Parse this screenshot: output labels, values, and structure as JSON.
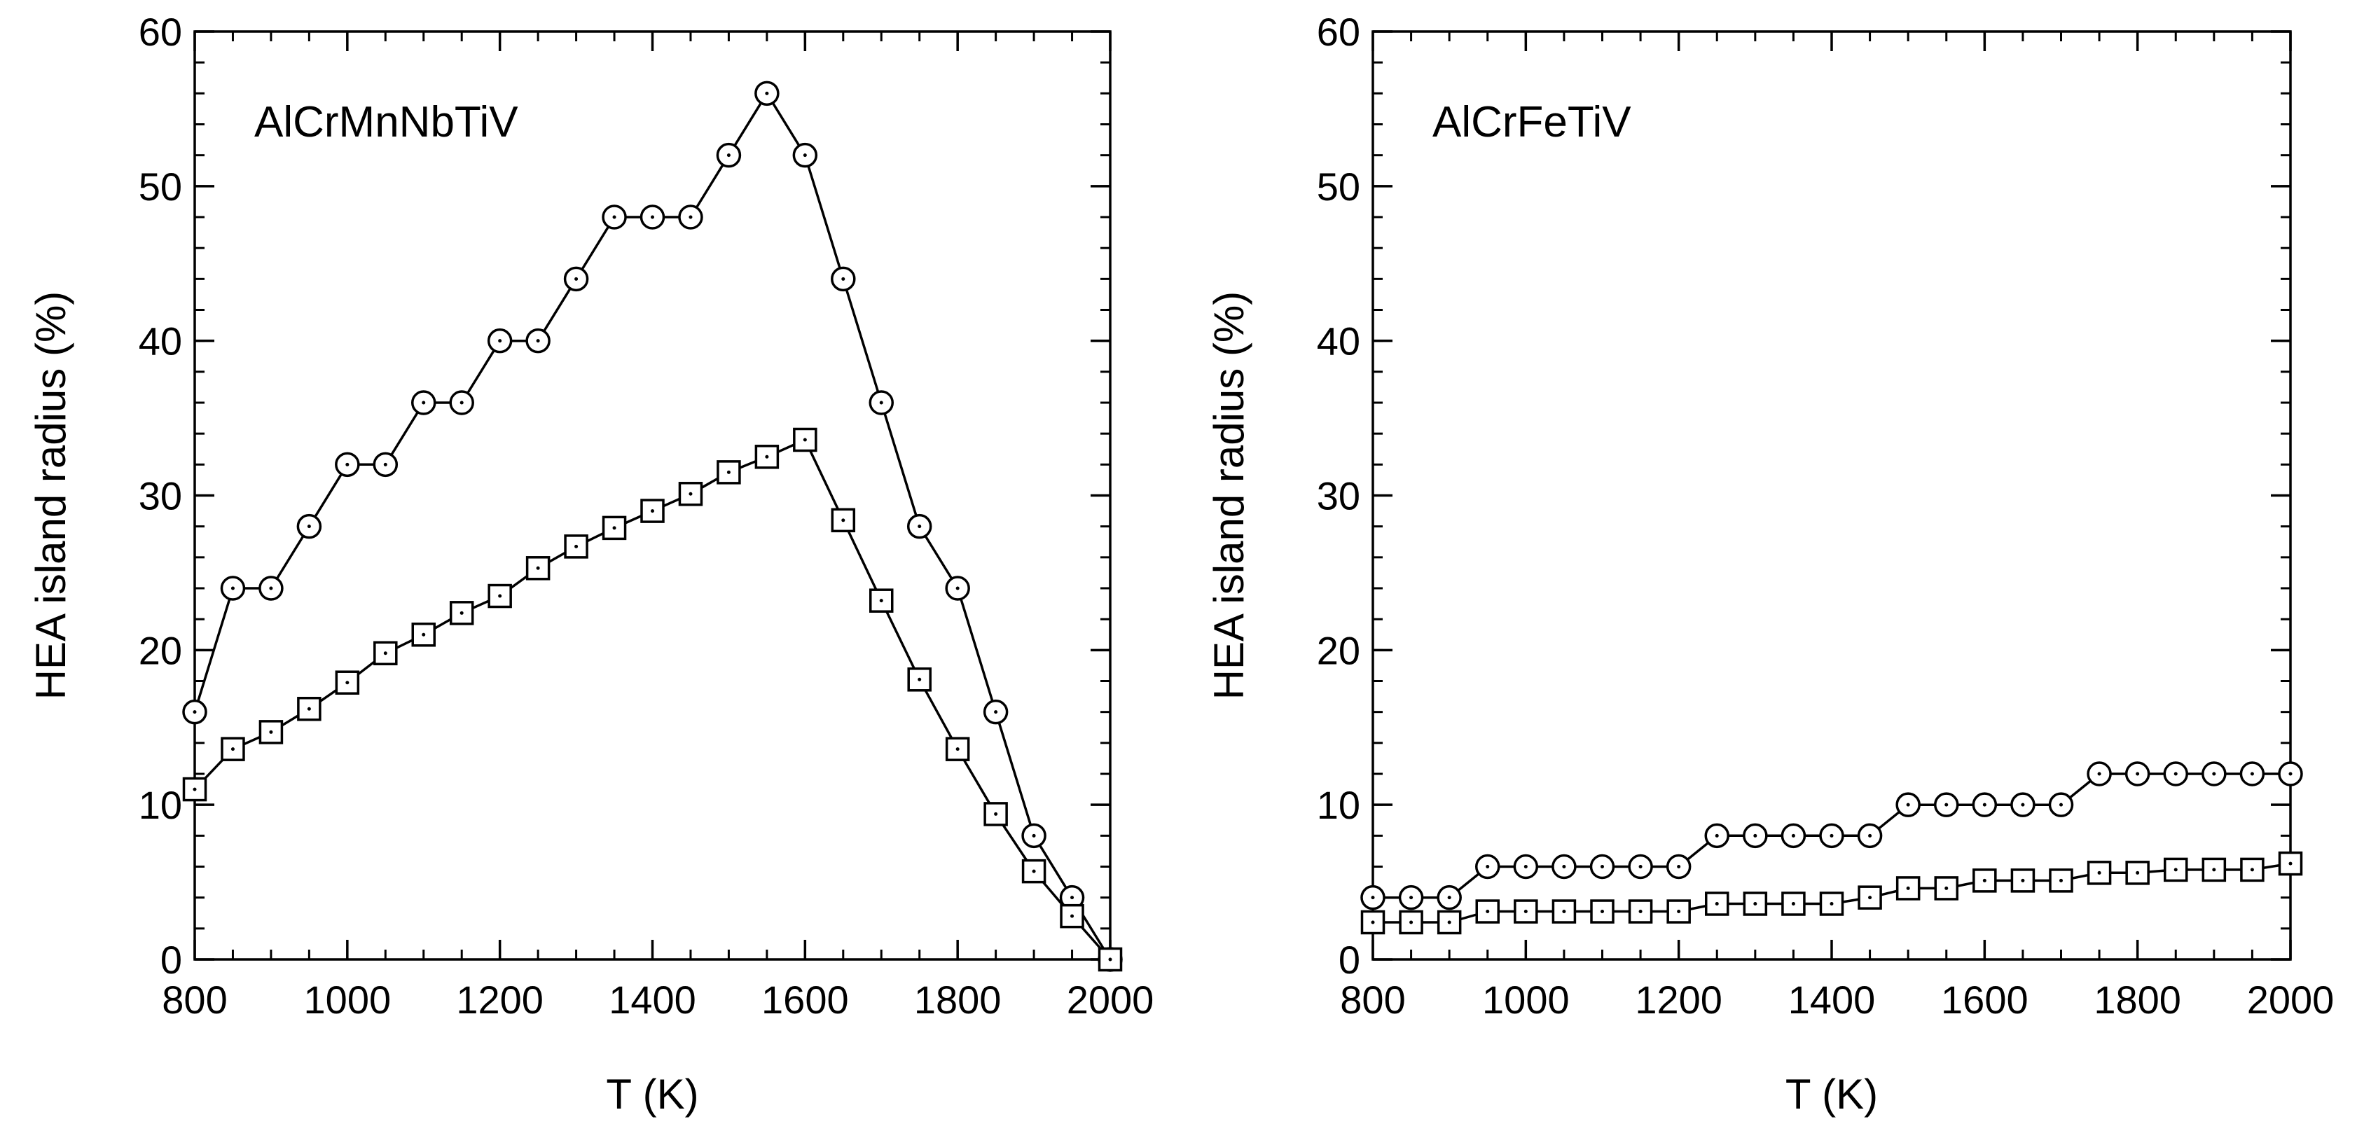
{
  "chart_data": [
    {
      "type": "line",
      "title": "AlCrMnNbTiV",
      "xlabel": "T (K)",
      "ylabel": "HEA island radius (%)",
      "xlim": [
        800,
        2000
      ],
      "ylim": [
        0,
        60
      ],
      "xticks": [
        800,
        1000,
        1200,
        1400,
        1600,
        1800,
        2000
      ],
      "yticks": [
        0,
        10,
        20,
        30,
        40,
        50,
        60
      ],
      "xtick_labels": [
        "800",
        "1000",
        "1200",
        "1400",
        "1600",
        "1800",
        "2000"
      ],
      "ytick_labels": [
        "0",
        "10",
        "20",
        "30",
        "40",
        "50",
        "60"
      ],
      "series": [
        {
          "name": "circles",
          "marker": "circle",
          "x": [
            800,
            850,
            900,
            950,
            1000,
            1050,
            1100,
            1150,
            1200,
            1250,
            1300,
            1350,
            1400,
            1450,
            1500,
            1550,
            1600,
            1650,
            1700,
            1750,
            1800,
            1850,
            1900,
            1950,
            2000
          ],
          "y": [
            16,
            24,
            24,
            28,
            32,
            32,
            36,
            36,
            40,
            40,
            44,
            48,
            48,
            48,
            52,
            56,
            52,
            44,
            36,
            28,
            24,
            16,
            8,
            4,
            0
          ]
        },
        {
          "name": "squares",
          "marker": "square",
          "x": [
            800,
            850,
            900,
            950,
            1000,
            1050,
            1100,
            1150,
            1200,
            1250,
            1300,
            1350,
            1400,
            1450,
            1500,
            1550,
            1600,
            1650,
            1700,
            1750,
            1800,
            1850,
            1900,
            1950,
            2000
          ],
          "y": [
            11,
            13.6,
            14.7,
            16.2,
            17.9,
            19.8,
            21,
            22.4,
            23.5,
            25.3,
            26.7,
            27.9,
            29,
            30.1,
            31.5,
            32.5,
            33.6,
            28.4,
            23.2,
            18.1,
            13.6,
            9.4,
            5.7,
            2.8,
            0
          ]
        }
      ]
    },
    {
      "type": "line",
      "title": "AlCrFeTiV",
      "xlabel": "T (K)",
      "ylabel": "HEA island radius (%)",
      "xlim": [
        800,
        2000
      ],
      "ylim": [
        0,
        60
      ],
      "xticks": [
        800,
        1000,
        1200,
        1400,
        1600,
        1800,
        2000
      ],
      "yticks": [
        0,
        10,
        20,
        30,
        40,
        50,
        60
      ],
      "xtick_labels": [
        "800",
        "1000",
        "1200",
        "1400",
        "1600",
        "1800",
        "2000"
      ],
      "ytick_labels": [
        "0",
        "10",
        "20",
        "30",
        "40",
        "50",
        "60"
      ],
      "series": [
        {
          "name": "circles",
          "marker": "circle",
          "x": [
            800,
            850,
            900,
            950,
            1000,
            1050,
            1100,
            1150,
            1200,
            1250,
            1300,
            1350,
            1400,
            1450,
            1500,
            1550,
            1600,
            1650,
            1700,
            1750,
            1800,
            1850,
            1900,
            1950,
            2000
          ],
          "y": [
            4,
            4,
            4,
            6,
            6,
            6,
            6,
            6,
            6,
            8,
            8,
            8,
            8,
            8,
            10,
            10,
            10,
            10,
            10,
            12,
            12,
            12,
            12,
            12,
            12
          ]
        },
        {
          "name": "squares",
          "marker": "square",
          "x": [
            800,
            850,
            900,
            950,
            1000,
            1050,
            1100,
            1150,
            1200,
            1250,
            1300,
            1350,
            1400,
            1450,
            1500,
            1550,
            1600,
            1650,
            1700,
            1750,
            1800,
            1850,
            1900,
            1950,
            2000
          ],
          "y": [
            2.4,
            2.4,
            2.4,
            3.1,
            3.1,
            3.1,
            3.1,
            3.1,
            3.1,
            3.6,
            3.6,
            3.6,
            3.6,
            4.0,
            4.6,
            4.6,
            5.1,
            5.1,
            5.1,
            5.6,
            5.6,
            5.8,
            5.8,
            5.8,
            6.2
          ]
        }
      ]
    }
  ]
}
